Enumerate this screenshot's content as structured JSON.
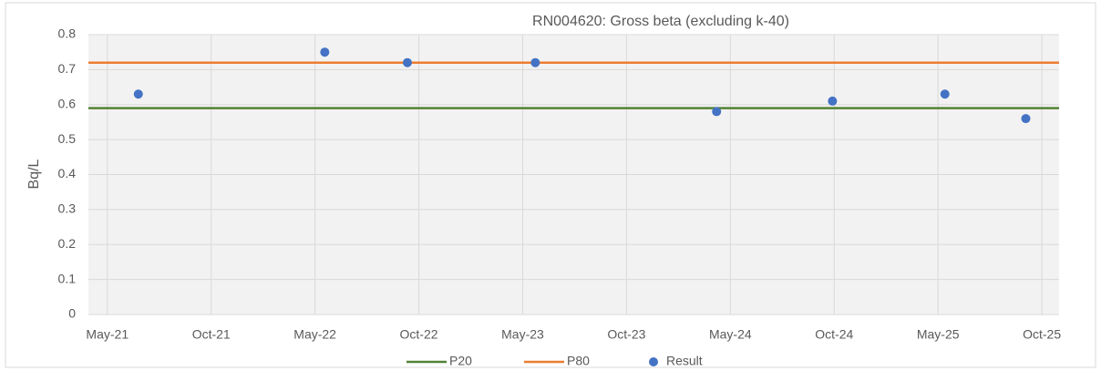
{
  "chart_data": {
    "type": "scatter",
    "title": "RN004620: Gross beta (excluding k-40)",
    "y_label": "Bq/L",
    "xlim": [
      44284,
      45976
    ],
    "xticks": [
      {
        "value": 44317,
        "label": "May-21"
      },
      {
        "value": 44498,
        "label": "Oct-21"
      },
      {
        "value": 44679,
        "label": "May-22"
      },
      {
        "value": 44860,
        "label": "Oct-22"
      },
      {
        "value": 45041,
        "label": "May-23"
      },
      {
        "value": 45222,
        "label": "Oct-23"
      },
      {
        "value": 45403,
        "label": "May-24"
      },
      {
        "value": 45584,
        "label": "Oct-24"
      },
      {
        "value": 45765,
        "label": "May-25"
      },
      {
        "value": 45946,
        "label": "Oct-25"
      }
    ],
    "ylim": [
      0,
      0.8
    ],
    "yticks": [
      0,
      0.1,
      0.2,
      0.3,
      0.4,
      0.5,
      0.6,
      0.7,
      0.8
    ],
    "grid": true,
    "reference_lines": [
      {
        "name": "P20",
        "color": "#548235",
        "value": 0.59
      },
      {
        "name": "P80",
        "color": "#ed7d31",
        "value": 0.72
      }
    ],
    "series": [
      {
        "name": "Result",
        "color": "#4472c4",
        "x": [
          44371,
          44696,
          44840,
          45063,
          45379,
          45581,
          45777,
          45918
        ],
        "values": [
          0.63,
          0.75,
          0.72,
          0.72,
          0.58,
          0.61,
          0.63,
          0.56
        ]
      }
    ],
    "legend": "bottom"
  }
}
